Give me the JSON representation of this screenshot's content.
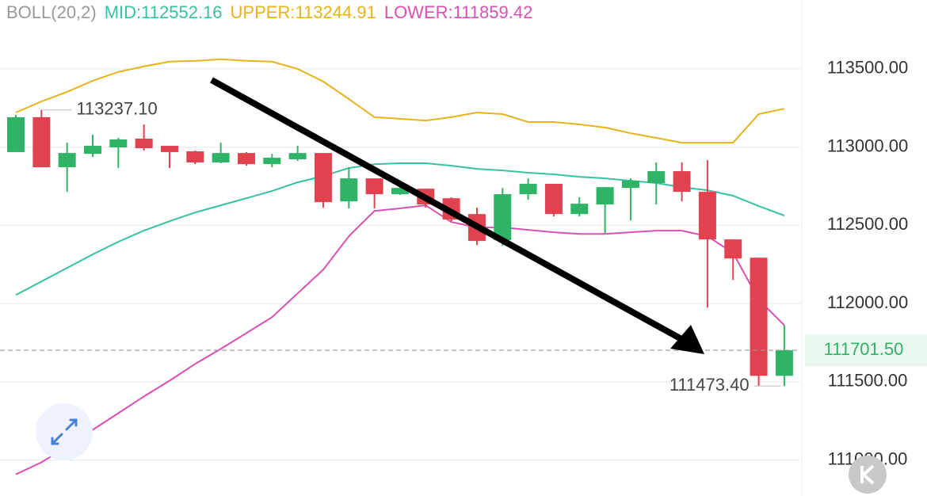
{
  "chart_data": {
    "type": "candlestick",
    "indicator_label": "BOLL(20,2)",
    "legend_texts": [
      "MID:112552.16",
      "UPPER:113244.91",
      "LOWER:111859.42"
    ],
    "legend_colors": [
      "#35c2a0",
      "#e8b21c",
      "#d94fb5"
    ],
    "up_color": "#2fb467",
    "down_color": "#e2424f",
    "ohlc": {
      "open": [
        112968,
        113191,
        112871,
        112957,
        112998,
        113054,
        113008,
        112973,
        112902,
        112962,
        112891,
        112922,
        112962,
        112653,
        112800,
        112699,
        112734,
        112673,
        112572,
        112405,
        112699,
        112765,
        112572,
        112633,
        112739,
        112770,
        112846,
        112714,
        112410,
        112293,
        111538
      ],
      "high": [
        113206,
        113237.1,
        113028,
        113079,
        113059,
        113145,
        113008,
        112978,
        113028,
        112968,
        112957,
        113008,
        112962,
        112871,
        112800,
        112770,
        112734,
        112679,
        112613,
        112739,
        112800,
        112765,
        112679,
        112744,
        112800,
        112902,
        112902,
        112917,
        112410,
        112293,
        111862
      ],
      "low": [
        112968,
        112871,
        112714,
        112937,
        112866,
        112978,
        112866,
        112891,
        112897,
        112881,
        112871,
        112912,
        112613,
        112608,
        112608,
        112694,
        112613,
        112526,
        112374,
        112369,
        112663,
        112557,
        112557,
        112450,
        112531,
        112633,
        112653,
        111974,
        112151,
        111473.4,
        111472
      ],
      "close": [
        113191,
        112871,
        112962,
        113008,
        113049,
        112993,
        112968,
        112902,
        112962,
        112891,
        112932,
        112962,
        112648,
        112800,
        112699,
        112739,
        112633,
        112537,
        112400,
        112699,
        112765,
        112572,
        112638,
        112744,
        112785,
        112846,
        112714,
        112410,
        112288,
        111538,
        111701.5
      ]
    },
    "series": [
      {
        "name": "UPPER",
        "color": "#e8b21c",
        "values": [
          113221,
          113292,
          113353,
          113424,
          113480,
          113515,
          113546,
          113551,
          113561,
          113551,
          113546,
          113500,
          113419,
          113307,
          113191,
          113181,
          113170,
          113191,
          113221,
          113211,
          113160,
          113160,
          113145,
          113125,
          113089,
          113059,
          113028,
          113028,
          113028,
          113211,
          113245
        ]
      },
      {
        "name": "MID",
        "color": "#35c2a0",
        "values": [
          112055,
          112141,
          112228,
          112314,
          112395,
          112466,
          112526,
          112582,
          112628,
          112673,
          112719,
          112775,
          112815,
          112866,
          112891,
          112897,
          112897,
          112881,
          112861,
          112851,
          112836,
          112826,
          112810,
          112800,
          112785,
          112770,
          112744,
          112724,
          112689,
          112623,
          112562
        ]
      },
      {
        "name": "LOWER",
        "color": "#d94fb5",
        "values": [
          110908,
          110985,
          111086,
          111193,
          111299,
          111406,
          111507,
          111614,
          111710,
          111811,
          111913,
          112065,
          112217,
          112430,
          112592,
          112608,
          112628,
          112521,
          112486,
          112486,
          112471,
          112456,
          112445,
          112445,
          112456,
          112466,
          112466,
          112430,
          112324,
          112025,
          111862
        ]
      }
    ],
    "ylim": [
      110770,
      113940
    ],
    "yticks": [
      {
        "value": 113500,
        "label": "113500.00"
      },
      {
        "value": 113000,
        "label": "113000.00"
      },
      {
        "value": 112500,
        "label": "112500.00"
      },
      {
        "value": 112000,
        "label": "112000.00"
      },
      {
        "value": 111500,
        "label": "111500.00"
      },
      {
        "value": 111000,
        "label": "111000.00"
      }
    ],
    "grid": true,
    "current_price": {
      "value": 111701.5,
      "label": "111701.50"
    },
    "high_marker": {
      "value": 113237.1,
      "label": "113237.10",
      "index": 1
    },
    "low_marker": {
      "value": 111473.4,
      "label": "111473.40",
      "index": 29
    }
  }
}
